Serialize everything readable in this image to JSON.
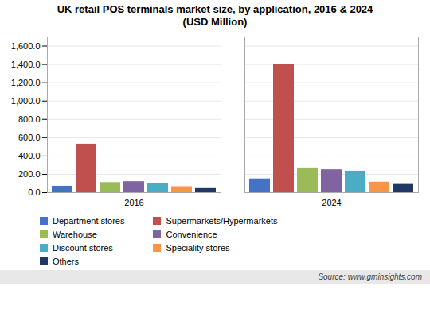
{
  "chart_data": {
    "type": "bar",
    "title": "UK retail POS terminals market size, by application, 2016 & 2024\n(USD Million)",
    "categories": [
      "2016",
      "2024"
    ],
    "series": [
      {
        "name": "Department stores",
        "color": "#4472c4",
        "values": [
          70,
          150
        ]
      },
      {
        "name": "Supermarkets/Hypermarkets",
        "color": "#c0504d",
        "values": [
          530,
          1400
        ]
      },
      {
        "name": "Warehouse",
        "color": "#9bbb59",
        "values": [
          110,
          270
        ]
      },
      {
        "name": "Convenience",
        "color": "#8064a2",
        "values": [
          120,
          250
        ]
      },
      {
        "name": "Discount stores",
        "color": "#4bacc6",
        "values": [
          100,
          235
        ]
      },
      {
        "name": "Speciality stores",
        "color": "#f79646",
        "values": [
          65,
          115
        ]
      },
      {
        "name": "Others",
        "color": "#1f3864",
        "values": [
          45,
          90
        ]
      }
    ],
    "ylim": [
      0,
      1700
    ],
    "yticks": [
      {
        "value": 0,
        "label": "0.0"
      },
      {
        "value": 200,
        "label": "200.0"
      },
      {
        "value": 400,
        "label": "400.0"
      },
      {
        "value": 600,
        "label": "600.0"
      },
      {
        "value": 800,
        "label": "800.0"
      },
      {
        "value": 1000,
        "label": "1,000.0"
      },
      {
        "value": 1200,
        "label": "1,200.0"
      },
      {
        "value": 1400,
        "label": "1,400.0"
      },
      {
        "value": 1600,
        "label": "1,600.0"
      }
    ],
    "grid": true,
    "legend": "bottom",
    "annotation": "Source: www.gminsights.com"
  }
}
